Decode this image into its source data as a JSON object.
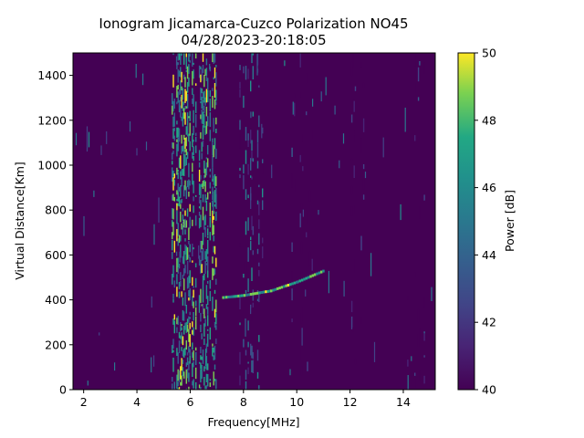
{
  "chart_data": {
    "type": "heatmap",
    "title_line1": "Ionogram Jicamarca-Cuzco Polarization NO45",
    "title_line2": "04/28/2023-20:18:05",
    "xlabel": "Frequency[MHz]",
    "ylabel": "Virtual Distance[Km]",
    "colorbar_label": "Power [dB]",
    "xlim": [
      1.6,
      15.2
    ],
    "ylim": [
      0,
      1500
    ],
    "clim": [
      40,
      50
    ],
    "colormap": "viridis",
    "x_ticks": [
      {
        "value": 2,
        "label": "2"
      },
      {
        "value": 4,
        "label": "4"
      },
      {
        "value": 6,
        "label": "6"
      },
      {
        "value": 8,
        "label": "8"
      },
      {
        "value": 10,
        "label": "10"
      },
      {
        "value": 12,
        "label": "12"
      },
      {
        "value": 14,
        "label": "14"
      }
    ],
    "y_ticks": [
      {
        "value": 0,
        "label": "0"
      },
      {
        "value": 200,
        "label": "200"
      },
      {
        "value": 400,
        "label": "400"
      },
      {
        "value": 600,
        "label": "600"
      },
      {
        "value": 800,
        "label": "800"
      },
      {
        "value": 1000,
        "label": "1000"
      },
      {
        "value": 1200,
        "label": "1200"
      },
      {
        "value": 1400,
        "label": "1400"
      }
    ],
    "c_ticks": [
      {
        "value": 40,
        "label": "40"
      },
      {
        "value": 42,
        "label": "42"
      },
      {
        "value": 44,
        "label": "44"
      },
      {
        "value": 46,
        "label": "46"
      },
      {
        "value": 48,
        "label": "48"
      },
      {
        "value": 50,
        "label": "50"
      }
    ],
    "interference_bands": [
      {
        "f_min": 5.3,
        "f_max": 7.0,
        "power_db": 50
      },
      {
        "f_min": 7.8,
        "f_max": 8.7,
        "power_db": 47
      },
      {
        "f_min": 9.8,
        "f_max": 10.6,
        "power_db": 44
      },
      {
        "f_min": 12.0,
        "f_max": 12.6,
        "power_db": 43
      },
      {
        "f_min": 14.1,
        "f_max": 14.9,
        "power_db": 44
      }
    ],
    "echo_trace": [
      {
        "f": 7.2,
        "d": 410
      },
      {
        "f": 8.0,
        "d": 420
      },
      {
        "f": 9.0,
        "d": 440
      },
      {
        "f": 10.0,
        "d": 480
      },
      {
        "f": 11.0,
        "d": 530
      }
    ]
  }
}
